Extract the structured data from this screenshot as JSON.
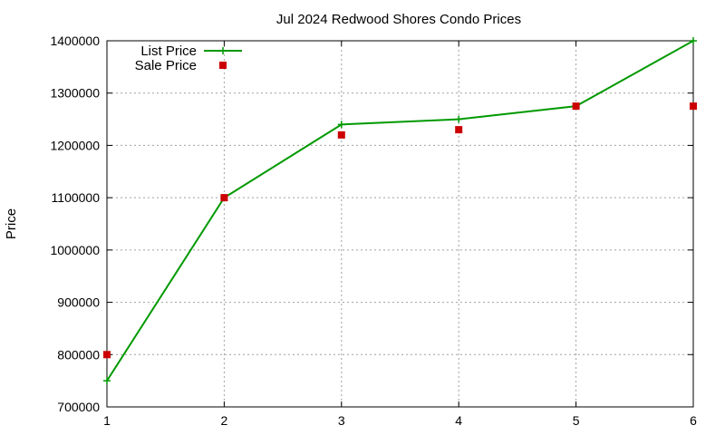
{
  "chart_data": {
    "type": "line",
    "title": "Jul 2024 Redwood Shores Condo Prices",
    "xlabel": "",
    "ylabel": "Price",
    "x": [
      1,
      2,
      3,
      4,
      5,
      6
    ],
    "xlim": [
      1,
      6
    ],
    "ylim": [
      700000,
      1400000
    ],
    "x_ticks": [
      "1",
      "2",
      "3",
      "4",
      "5",
      "6"
    ],
    "y_ticks": [
      "700000",
      "800000",
      "900000",
      "1000000",
      "1100000",
      "1200000",
      "1300000",
      "1400000"
    ],
    "grid": true,
    "legend_position": "top-left",
    "series": [
      {
        "name": "List Price",
        "style": "line-plus",
        "color": "#009900",
        "values": [
          750000,
          1100000,
          1240000,
          1250000,
          1275000,
          1400000
        ]
      },
      {
        "name": "Sale Price",
        "style": "square-points",
        "color": "#cc0000",
        "values": [
          800000,
          1100000,
          1220000,
          1230000,
          1275000,
          1275000
        ]
      }
    ]
  }
}
